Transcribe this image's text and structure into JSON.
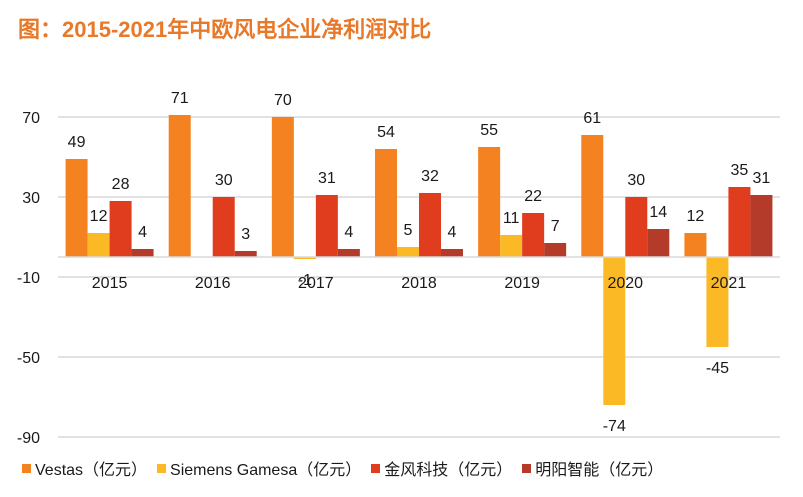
{
  "title": "图：2015-2021年中欧风电企业净利润对比",
  "chart_data": {
    "type": "bar",
    "title": "图：2015-2021年中欧风电企业净利润对比",
    "xlabel": "",
    "ylabel": "",
    "categories": [
      "2015",
      "2016",
      "2017",
      "2018",
      "2019",
      "2020",
      "2021"
    ],
    "series": [
      {
        "name": "Vestas（亿元）",
        "color": "#F58220",
        "values": [
          49,
          71,
          70,
          54,
          55,
          61,
          12
        ]
      },
      {
        "name": "Siemens Gamesa（亿元）",
        "color": "#FBBA25",
        "values": [
          12,
          null,
          -1,
          5,
          11,
          -74,
          -45
        ]
      },
      {
        "name": "金风科技（亿元）",
        "color": "#E03C1E",
        "values": [
          28,
          30,
          31,
          32,
          22,
          30,
          35
        ]
      },
      {
        "name": "明阳智能（亿元）",
        "color": "#B43A2A",
        "values": [
          4,
          3,
          4,
          4,
          7,
          14,
          31
        ]
      }
    ],
    "ylim": [
      -90,
      70
    ],
    "yticks": [
      70,
      30,
      -10,
      -50,
      -90
    ],
    "grid": true,
    "legend": "bottom",
    "data_labels": true
  }
}
